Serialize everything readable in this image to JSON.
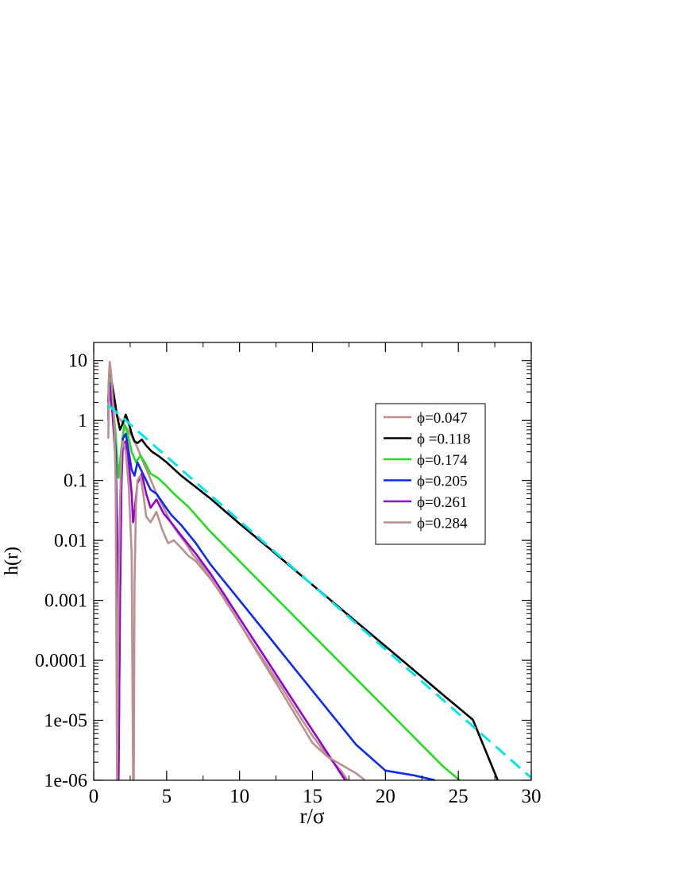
{
  "chart_data": {
    "type": "line",
    "xlabel": "r/σ",
    "ylabel": "h(r)",
    "xlim": [
      0,
      30
    ],
    "ylim": [
      1e-06,
      20
    ],
    "yscale": "log",
    "grid": false,
    "legend_position": "top-right",
    "x_ticks": [
      {
        "v": 0,
        "label": "0"
      },
      {
        "v": 5,
        "label": "5"
      },
      {
        "v": 10,
        "label": "10"
      },
      {
        "v": 15,
        "label": "15"
      },
      {
        "v": 20,
        "label": "20"
      },
      {
        "v": 25,
        "label": "25"
      },
      {
        "v": 30,
        "label": "30"
      }
    ],
    "y_ticks": [
      {
        "v": 10,
        "label": "10"
      },
      {
        "v": 1,
        "label": "1"
      },
      {
        "v": 0.1,
        "label": "0.1"
      },
      {
        "v": 0.01,
        "label": "0.01"
      },
      {
        "v": 0.001,
        "label": "0.001"
      },
      {
        "v": 0.0001,
        "label": "0.0001"
      },
      {
        "v": 1e-05,
        "label": "1e-05"
      },
      {
        "v": 1e-06,
        "label": "1e-06"
      }
    ],
    "series": [
      {
        "name": "ϕ=0.047",
        "color": "#bc8f8f",
        "dashed": false,
        "x": [
          1.0,
          1.1,
          1.3,
          1.6,
          2.1,
          2.6,
          3.0,
          3.4,
          3.8,
          4.3,
          4.8,
          5.3,
          5.8,
          6.3,
          6.8,
          7.3,
          8.0,
          9.0,
          10.0,
          11.0,
          12.0,
          13.0,
          14.0,
          15.0,
          16.0,
          17.0,
          17.4
        ],
        "y": [
          2.0,
          6.0,
          3.0,
          1.2,
          0.85,
          0.55,
          0.35,
          0.2,
          0.12,
          0.06,
          0.035,
          0.02,
          0.013,
          0.009,
          0.0058,
          0.0042,
          0.0024,
          0.001,
          0.00042,
          0.000175,
          7.5e-05,
          3.2e-05,
          1.3e-05,
          5.5e-06,
          2.6e-06,
          1.4e-06,
          1e-06
        ]
      },
      {
        "name": "ϕ =0.118",
        "color": "#000000",
        "dashed": false,
        "x": [
          1.0,
          1.05,
          1.1,
          1.2,
          1.4,
          1.6,
          1.8,
          2.0,
          2.2,
          2.4,
          2.6,
          2.8,
          3.0,
          3.3,
          3.6,
          4.0,
          4.5,
          5.0,
          6.0,
          8.0,
          10.0,
          12.0,
          14.0,
          16.0,
          18.0,
          20.0,
          22.0,
          24.0,
          26.0,
          27.7
        ],
        "y": [
          2.0,
          5.5,
          6.5,
          5.0,
          2.5,
          1.2,
          0.7,
          0.9,
          1.25,
          0.9,
          0.6,
          0.45,
          0.42,
          0.48,
          0.38,
          0.3,
          0.25,
          0.2,
          0.12,
          0.05,
          0.019,
          0.0075,
          0.0029,
          0.00113,
          0.00044,
          0.000172,
          6.7e-05,
          2.6e-05,
          1.02e-05,
          1e-06
        ]
      },
      {
        "name": "ϕ=0.174",
        "color": "#22dd22",
        "dashed": false,
        "x": [
          1.0,
          1.05,
          1.1,
          1.3,
          1.5,
          1.7,
          1.9,
          2.1,
          2.3,
          2.6,
          2.9,
          3.2,
          3.5,
          3.9,
          4.4,
          4.9,
          5.5,
          6.5,
          8.0,
          10.0,
          12.0,
          14.0,
          16.0,
          18.0,
          20.0,
          22.0,
          24.0,
          25.1
        ],
        "y": [
          1.5,
          4.5,
          5.0,
          2.0,
          0.6,
          0.11,
          0.35,
          0.85,
          0.65,
          0.3,
          0.2,
          0.26,
          0.2,
          0.13,
          0.11,
          0.085,
          0.06,
          0.036,
          0.014,
          0.0045,
          0.00145,
          0.00047,
          0.000152,
          4.9e-05,
          1.59e-05,
          5.1e-06,
          1.66e-06,
          1e-06
        ]
      },
      {
        "name": "ϕ=0.205",
        "color": "#0a2bf0",
        "dashed": false,
        "x": [
          1.0,
          1.05,
          1.1,
          1.3,
          1.5,
          1.6,
          1.7,
          1.8,
          1.9,
          2.0,
          2.2,
          2.4,
          2.6,
          2.8,
          3.0,
          3.3,
          3.6,
          3.9,
          4.3,
          4.8,
          5.3,
          6.0,
          7.0,
          8.0,
          10.0,
          12.0,
          14.0,
          16.0,
          18.0,
          20.0,
          22.0,
          23.4
        ],
        "y": [
          1.2,
          3.5,
          4.2,
          1.5,
          0.3,
          0.02,
          1e-06,
          0.001,
          0.1,
          0.5,
          0.6,
          0.3,
          0.15,
          0.12,
          0.2,
          0.14,
          0.1,
          0.07,
          0.06,
          0.04,
          0.027,
          0.018,
          0.009,
          0.004,
          0.001,
          0.00025,
          6.2e-05,
          1.55e-05,
          3.9e-06,
          1.45e-06,
          1.2e-06,
          1e-06
        ]
      },
      {
        "name": "ϕ=0.261",
        "color": "#9400d3",
        "dashed": false,
        "x": [
          1.0,
          1.05,
          1.1,
          1.3,
          1.5,
          1.6,
          1.7,
          1.8,
          1.9,
          2.0,
          2.2,
          2.4,
          2.6,
          2.7,
          2.8,
          3.0,
          3.3,
          3.6,
          3.9,
          4.3,
          4.8,
          5.3,
          6.0,
          7.0,
          8.0,
          9.0,
          10.0,
          12.0,
          14.0,
          16.0,
          18.0,
          19.6
        ],
        "y": [
          1.0,
          3.0,
          3.5,
          1.2,
          0.2,
          0.01,
          1e-06,
          0.001,
          0.08,
          0.4,
          0.45,
          0.2,
          0.06,
          0.02,
          0.03,
          0.09,
          0.13,
          0.06,
          0.035,
          0.048,
          0.028,
          0.02,
          0.012,
          0.006,
          0.0028,
          0.0012,
          0.0005,
          9e-05,
          1.6e-05,
          2.9e-06,
          5.2e-07,
          1e-06
        ]
      },
      {
        "name": "ϕ=0.284",
        "color": "#bc8f8f",
        "dashed": false,
        "x": [
          1.0,
          1.05,
          1.1,
          1.2,
          1.4,
          1.5,
          1.6,
          1.7,
          1.8,
          1.9,
          2.0,
          2.2,
          2.4,
          2.6,
          2.7,
          2.75,
          2.8,
          2.9,
          3.0,
          3.2,
          3.4,
          3.6,
          3.9,
          4.3,
          4.7,
          5.1,
          5.5,
          6.0,
          6.5,
          7.0,
          8.0,
          9.0,
          10.0,
          11.0,
          12.0,
          13.0,
          14.0,
          15.0,
          16.0,
          17.0,
          18.0,
          18.6
        ],
        "y": [
          0.5,
          6.0,
          9.5,
          6.0,
          1.0,
          0.1,
          1e-06,
          0.001,
          0.04,
          0.3,
          0.45,
          0.3,
          0.08,
          0.006,
          1e-06,
          1e-06,
          0.002,
          0.04,
          0.1,
          0.12,
          0.06,
          0.025,
          0.02,
          0.03,
          0.015,
          0.009,
          0.01,
          0.0075,
          0.0055,
          0.0045,
          0.0023,
          0.00105,
          0.000415,
          0.000165,
          6.6e-05,
          2.65e-05,
          1.05e-05,
          4.2e-06,
          2.5e-06,
          1.8e-06,
          1.3e-06,
          1e-06
        ]
      },
      {
        "name": "",
        "color": "#00e5ee",
        "dashed": true,
        "x": [
          1.0,
          30.0
        ],
        "y": [
          1.8,
          1.1e-06
        ]
      }
    ]
  }
}
